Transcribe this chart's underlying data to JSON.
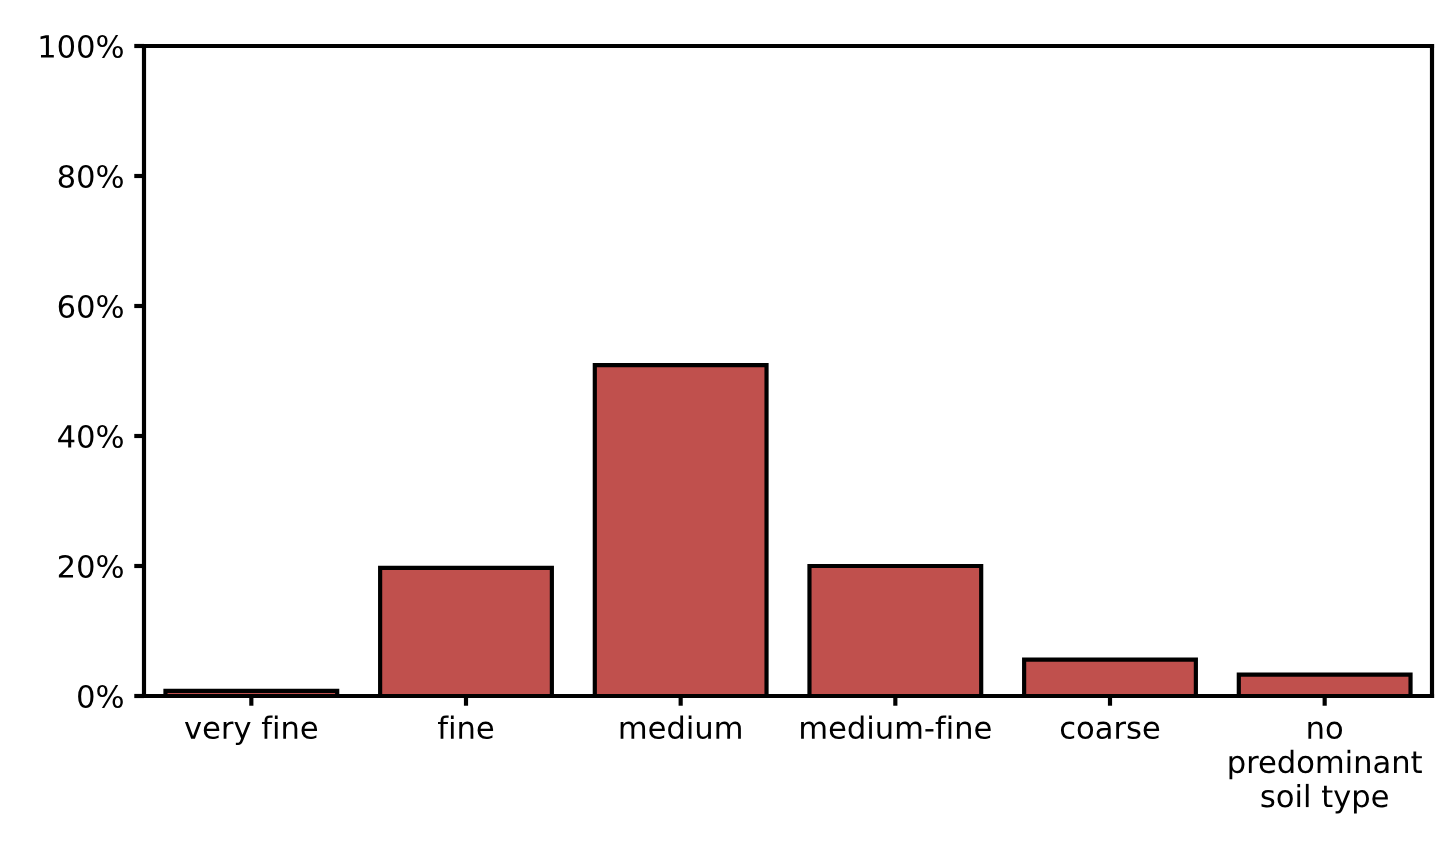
{
  "chart_data": {
    "type": "bar",
    "categories": [
      "very fine",
      "fine",
      "medium",
      "medium-fine",
      "coarse",
      "no\npredominant\nsoil type"
    ],
    "values": [
      0.8,
      19.7,
      50.9,
      20.0,
      5.6,
      3.3
    ],
    "color": "#c0504d",
    "ylim": [
      0,
      100
    ],
    "yticks": [
      {
        "value": 0,
        "label": "0%"
      },
      {
        "value": 20,
        "label": "20%"
      },
      {
        "value": 40,
        "label": "40%"
      },
      {
        "value": 60,
        "label": "60%"
      },
      {
        "value": 80,
        "label": "80%"
      },
      {
        "value": 100,
        "label": "100%"
      }
    ],
    "grid": false
  }
}
